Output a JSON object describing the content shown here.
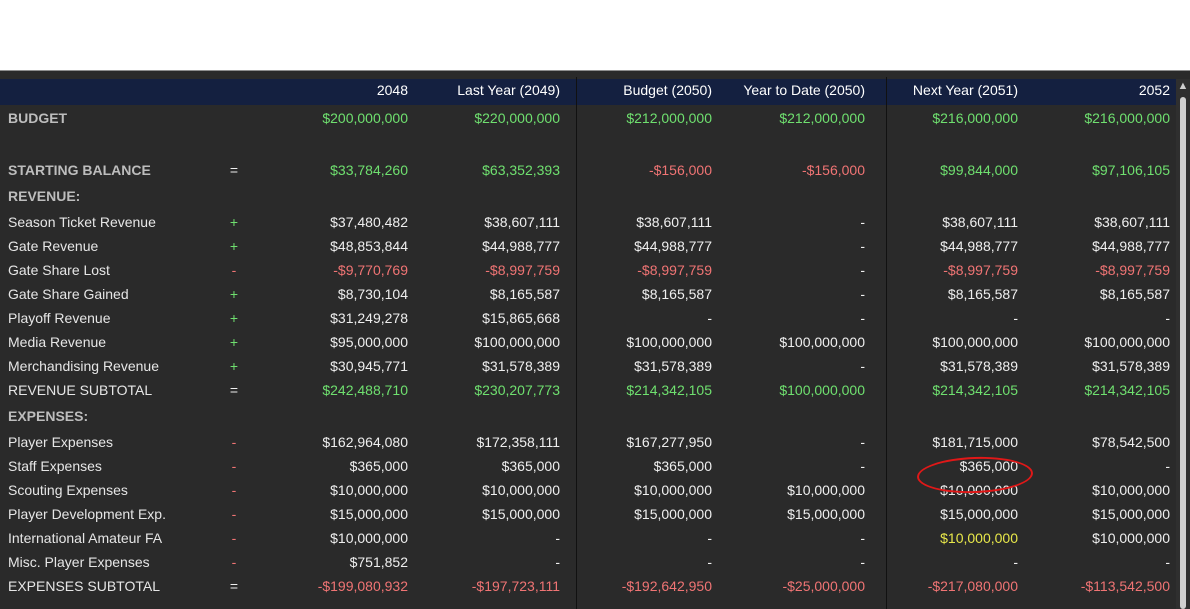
{
  "columns": [
    "2048",
    "Last Year (2049)",
    "Budget (2050)",
    "Year to Date (2050)",
    "Next Year (2051)",
    "2052"
  ],
  "rows": [
    {
      "label": "BUDGET",
      "style": "bold",
      "op": "",
      "values": [
        "$200,000,000",
        "$220,000,000",
        "$212,000,000",
        "$212,000,000",
        "$216,000,000",
        "$216,000,000"
      ],
      "colors": [
        "green",
        "green",
        "green",
        "green",
        "green",
        "green"
      ]
    },
    {
      "label": "",
      "style": "spacer",
      "op": "",
      "values": [
        "",
        "",
        "",
        "",
        "",
        ""
      ],
      "colors": [
        "",
        "",
        "",
        "",
        "",
        ""
      ]
    },
    {
      "label": "STARTING BALANCE",
      "style": "bold",
      "op": "=",
      "values": [
        "$33,784,260",
        "$63,352,393",
        "-$156,000",
        "-$156,000",
        "$99,844,000",
        "$97,106,105"
      ],
      "colors": [
        "green",
        "green",
        "red",
        "red",
        "green",
        "green"
      ]
    },
    {
      "label": "REVENUE:",
      "style": "section",
      "op": "",
      "values": [
        "",
        "",
        "",
        "",
        "",
        ""
      ],
      "colors": [
        "",
        "",
        "",
        "",
        "",
        ""
      ]
    },
    {
      "label": "Season Ticket Revenue",
      "style": "normal",
      "op": "+",
      "values": [
        "$37,480,482",
        "$38,607,111",
        "$38,607,111",
        "-",
        "$38,607,111",
        "$38,607,111"
      ],
      "colors": [
        "white",
        "white",
        "white",
        "white",
        "white",
        "white"
      ]
    },
    {
      "label": "Gate Revenue",
      "style": "normal",
      "op": "+",
      "values": [
        "$48,853,844",
        "$44,988,777",
        "$44,988,777",
        "-",
        "$44,988,777",
        "$44,988,777"
      ],
      "colors": [
        "white",
        "white",
        "white",
        "white",
        "white",
        "white"
      ]
    },
    {
      "label": "Gate Share Lost",
      "style": "normal",
      "op": "-",
      "values": [
        "-$9,770,769",
        "-$8,997,759",
        "-$8,997,759",
        "-",
        "-$8,997,759",
        "-$8,997,759"
      ],
      "colors": [
        "red",
        "red",
        "red",
        "white",
        "red",
        "red"
      ]
    },
    {
      "label": "Gate Share Gained",
      "style": "normal",
      "op": "+",
      "values": [
        "$8,730,104",
        "$8,165,587",
        "$8,165,587",
        "-",
        "$8,165,587",
        "$8,165,587"
      ],
      "colors": [
        "white",
        "white",
        "white",
        "white",
        "white",
        "white"
      ]
    },
    {
      "label": "Playoff Revenue",
      "style": "normal",
      "op": "+",
      "values": [
        "$31,249,278",
        "$15,865,668",
        "-",
        "-",
        "-",
        "-"
      ],
      "colors": [
        "white",
        "white",
        "white",
        "white",
        "white",
        "white"
      ]
    },
    {
      "label": "Media Revenue",
      "style": "normal",
      "op": "+",
      "values": [
        "$95,000,000",
        "$100,000,000",
        "$100,000,000",
        "$100,000,000",
        "$100,000,000",
        "$100,000,000"
      ],
      "colors": [
        "white",
        "white",
        "white",
        "white",
        "white",
        "white"
      ]
    },
    {
      "label": "Merchandising Revenue",
      "style": "normal",
      "op": "+",
      "values": [
        "$30,945,771",
        "$31,578,389",
        "$31,578,389",
        "-",
        "$31,578,389",
        "$31,578,389"
      ],
      "colors": [
        "white",
        "white",
        "white",
        "white",
        "white",
        "white"
      ]
    },
    {
      "label": "REVENUE SUBTOTAL",
      "style": "normal",
      "op": "=",
      "values": [
        "$242,488,710",
        "$230,207,773",
        "$214,342,105",
        "$100,000,000",
        "$214,342,105",
        "$214,342,105"
      ],
      "colors": [
        "green",
        "green",
        "green",
        "green",
        "green",
        "green"
      ]
    },
    {
      "label": "EXPENSES:",
      "style": "section",
      "op": "",
      "values": [
        "",
        "",
        "",
        "",
        "",
        ""
      ],
      "colors": [
        "",
        "",
        "",
        "",
        "",
        ""
      ]
    },
    {
      "label": "Player Expenses",
      "style": "normal",
      "op": "-",
      "values": [
        "$162,964,080",
        "$172,358,111",
        "$167,277,950",
        "-",
        "$181,715,000",
        "$78,542,500"
      ],
      "colors": [
        "white",
        "white",
        "white",
        "white",
        "white",
        "white"
      ]
    },
    {
      "label": "Staff Expenses",
      "style": "normal",
      "op": "-",
      "values": [
        "$365,000",
        "$365,000",
        "$365,000",
        "-",
        "$365,000",
        "-"
      ],
      "colors": [
        "white",
        "white",
        "white",
        "white",
        "white",
        "white"
      ]
    },
    {
      "label": "Scouting Expenses",
      "style": "normal",
      "op": "-",
      "values": [
        "$10,000,000",
        "$10,000,000",
        "$10,000,000",
        "$10,000,000",
        "$10,000,000",
        "$10,000,000"
      ],
      "colors": [
        "white",
        "white",
        "white",
        "white",
        "white",
        "white"
      ]
    },
    {
      "label": "Player Development Exp.",
      "style": "normal",
      "op": "-",
      "values": [
        "$15,000,000",
        "$15,000,000",
        "$15,000,000",
        "$15,000,000",
        "$15,000,000",
        "$15,000,000"
      ],
      "colors": [
        "white",
        "white",
        "white",
        "white",
        "white",
        "white"
      ]
    },
    {
      "label": "International Amateur FA",
      "style": "normal",
      "op": "-",
      "values": [
        "$10,000,000",
        "-",
        "-",
        "-",
        "$10,000,000",
        "$10,000,000"
      ],
      "colors": [
        "white",
        "white",
        "white",
        "white",
        "yellow",
        "white"
      ]
    },
    {
      "label": "Misc. Player Expenses",
      "style": "normal",
      "op": "-",
      "values": [
        "$751,852",
        "-",
        "-",
        "-",
        "-",
        "-"
      ],
      "colors": [
        "white",
        "white",
        "white",
        "white",
        "white",
        "white"
      ]
    },
    {
      "label": "EXPENSES SUBTOTAL",
      "style": "normal",
      "op": "=",
      "values": [
        "-$199,080,932",
        "-$197,723,111",
        "-$192,642,950",
        "-$25,000,000",
        "-$217,080,000",
        "-$113,542,500"
      ],
      "colors": [
        "red",
        "red",
        "red",
        "red",
        "red",
        "red"
      ]
    }
  ],
  "colors": {
    "green": "#6fe06f",
    "red": "#f07474",
    "yellow": "#e8e84a",
    "header_band": "#142040",
    "panel": "#2a2a2a",
    "annotation": "#e01818"
  },
  "scroll_up_icon": "▲"
}
